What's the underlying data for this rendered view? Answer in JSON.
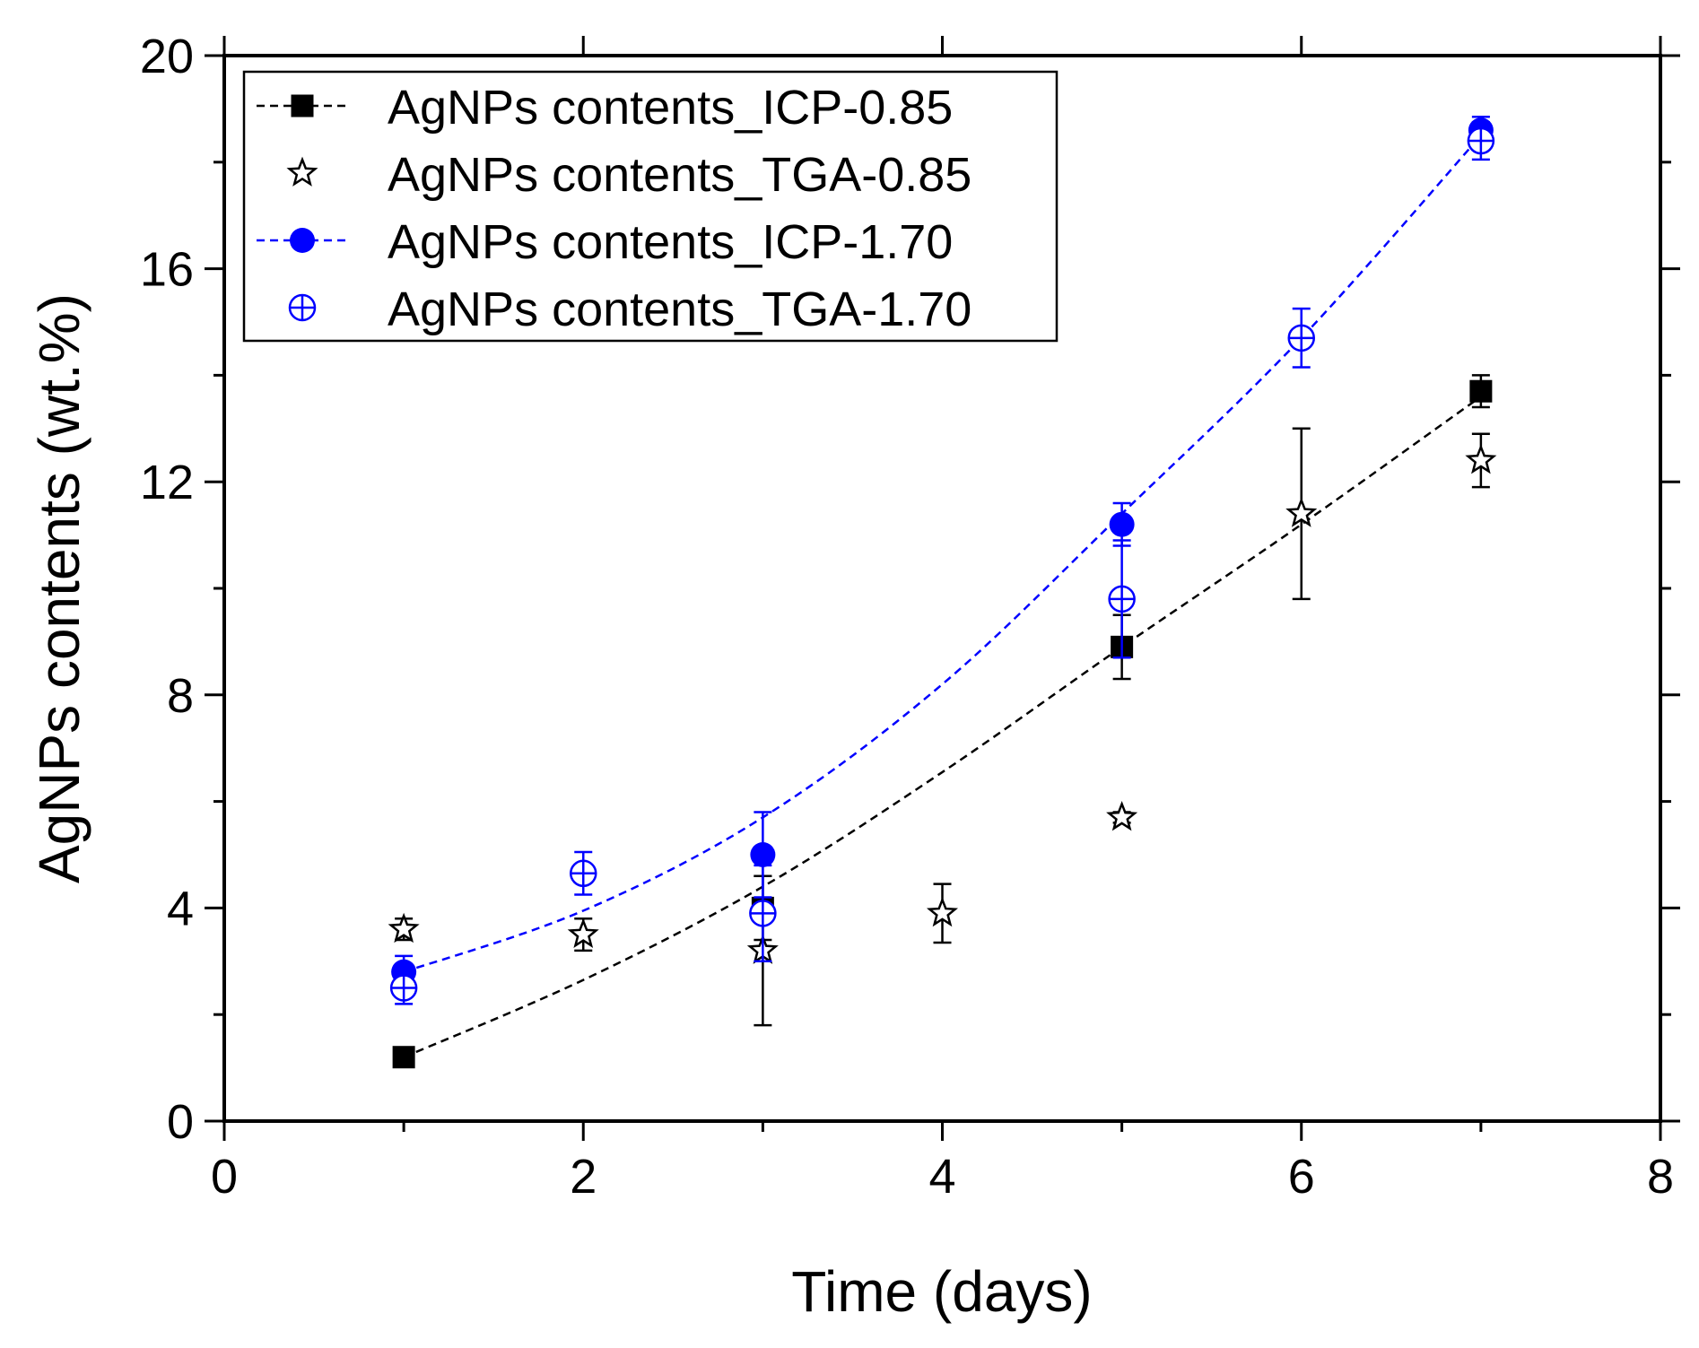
{
  "chart_data": {
    "type": "scatter",
    "title": "",
    "xlabel": "Time (days)",
    "ylabel": "AgNPs contents (wt.%)",
    "xlim": [
      0,
      8
    ],
    "ylim": [
      0,
      20
    ],
    "xticks": [
      0,
      2,
      4,
      6,
      8
    ],
    "yticks": [
      0,
      4,
      8,
      12,
      16,
      20
    ],
    "xtick_labels": [
      "0",
      "2",
      "4",
      "6",
      "8"
    ],
    "ytick_labels": [
      "0",
      "4",
      "8",
      "12",
      "16",
      "20"
    ],
    "grid": false,
    "legend_position": "top-left",
    "series": [
      {
        "name": "AgNPs contents_ICP-0.85",
        "color": "#000000",
        "marker": "filled-square",
        "line": "dashed",
        "x": [
          1,
          3,
          5,
          7
        ],
        "y": [
          1.2,
          4.0,
          8.9,
          13.7
        ],
        "err": [
          0.1,
          0.6,
          0.6,
          0.3
        ],
        "fit_curve": {
          "x": [
            1,
            2,
            3,
            4,
            5,
            6,
            7
          ],
          "y": [
            1.2,
            2.65,
            4.4,
            6.55,
            8.9,
            11.2,
            13.6
          ]
        }
      },
      {
        "name": "AgNPs contents_TGA-0.85",
        "color": "#000000",
        "marker": "open-star",
        "line": "none",
        "x": [
          1,
          2,
          3,
          4,
          5,
          6,
          7
        ],
        "y": [
          3.6,
          3.5,
          3.2,
          3.9,
          5.7,
          11.4,
          12.4
        ],
        "err": [
          0.2,
          0.3,
          1.4,
          0.55,
          0.1,
          1.6,
          0.5
        ]
      },
      {
        "name": "AgNPs contents_ICP-1.70",
        "color": "#0000ff",
        "marker": "filled-circle",
        "line": "dashed",
        "x": [
          1,
          3,
          5,
          7
        ],
        "y": [
          2.8,
          5.0,
          11.2,
          18.6
        ],
        "err": [
          0.3,
          0.8,
          0.4,
          0.25
        ],
        "fit_curve": {
          "x": [
            1,
            2,
            3,
            4,
            5,
            6,
            7
          ],
          "y": [
            2.8,
            3.95,
            5.7,
            8.2,
            11.4,
            14.7,
            18.5
          ]
        }
      },
      {
        "name": "AgNPs contents_TGA-1.70",
        "color": "#0000ff",
        "marker": "open-circle-cross",
        "line": "none",
        "x": [
          1,
          2,
          3,
          5,
          6,
          7
        ],
        "y": [
          2.5,
          4.65,
          3.9,
          9.8,
          14.7,
          18.4
        ],
        "err": [
          0.3,
          0.4,
          0.9,
          1.1,
          0.55,
          0.35
        ]
      }
    ]
  }
}
